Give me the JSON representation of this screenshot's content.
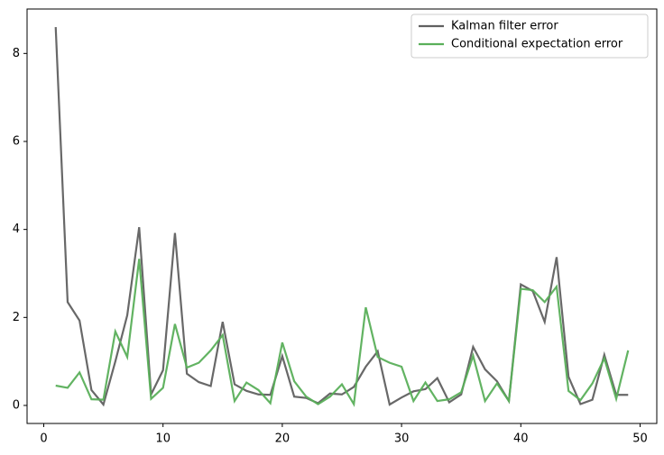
{
  "chart_data": {
    "type": "line",
    "x": [
      1,
      2,
      3,
      4,
      5,
      6,
      7,
      8,
      9,
      10,
      11,
      12,
      13,
      14,
      15,
      16,
      17,
      18,
      19,
      20,
      21,
      22,
      23,
      24,
      25,
      26,
      27,
      28,
      29,
      30,
      31,
      32,
      33,
      34,
      35,
      36,
      37,
      38,
      39,
      40,
      41,
      42,
      43,
      44,
      45,
      46,
      47,
      48,
      49
    ],
    "series": [
      {
        "name": "Kalman filter error",
        "color": "#606060",
        "values": [
          8.6,
          2.35,
          1.93,
          0.35,
          0.02,
          1.0,
          2.05,
          4.05,
          0.25,
          0.8,
          3.92,
          0.72,
          0.53,
          0.44,
          1.9,
          0.48,
          0.33,
          0.25,
          0.24,
          1.12,
          0.2,
          0.17,
          0.05,
          0.27,
          0.25,
          0.42,
          0.88,
          1.23,
          0.02,
          0.18,
          0.32,
          0.37,
          0.62,
          0.07,
          0.25,
          1.33,
          0.82,
          0.55,
          0.1,
          2.75,
          2.6,
          1.9,
          3.37,
          0.65,
          0.03,
          0.13,
          1.15,
          0.24,
          0.24
        ]
      },
      {
        "name": "Conditional expectation error",
        "color": "#5aaf5a",
        "values": [
          0.45,
          0.4,
          0.75,
          0.14,
          0.13,
          1.68,
          1.1,
          3.33,
          0.15,
          0.4,
          1.85,
          0.86,
          0.97,
          1.25,
          1.6,
          0.1,
          0.52,
          0.35,
          0.05,
          1.43,
          0.55,
          0.2,
          0.03,
          0.2,
          0.48,
          0.03,
          2.23,
          1.1,
          0.97,
          0.88,
          0.1,
          0.52,
          0.1,
          0.14,
          0.3,
          1.13,
          0.1,
          0.5,
          0.1,
          2.65,
          2.62,
          2.35,
          2.7,
          0.33,
          0.12,
          0.5,
          1.07,
          0.15,
          1.25
        ]
      }
    ],
    "xlim": [
      -1.4,
      51.4
    ],
    "ylim": [
      -0.41,
      9.01
    ],
    "xticks": [
      0,
      10,
      20,
      30,
      40,
      50
    ],
    "yticks": [
      0,
      2,
      4,
      6,
      8
    ],
    "grid": false,
    "legend": "upper right"
  }
}
